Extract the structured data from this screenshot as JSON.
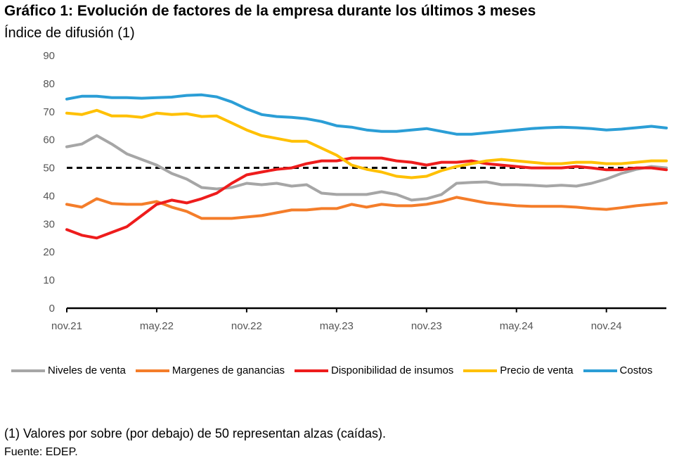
{
  "header": {
    "title": "Gráfico 1: Evolución de factores de la empresa durante los últimos 3 meses",
    "subtitle": "Índice de difusión (1)"
  },
  "footer": {
    "note": "(1) Valores por sobre (por debajo) de 50 representan alzas (caídas).",
    "source": "Fuente: EDEP."
  },
  "chart_data": {
    "type": "line",
    "title": "",
    "xlabel": "",
    "ylabel": "",
    "ylim": [
      0,
      90
    ],
    "yticks": [
      0,
      10,
      20,
      30,
      40,
      50,
      60,
      70,
      80,
      90
    ],
    "x_tick_labels": [
      "nov.21",
      "may.22",
      "nov.22",
      "may.23",
      "nov.23",
      "may.24",
      "nov.24"
    ],
    "x_tick_index": [
      0,
      6,
      12,
      18,
      24,
      30,
      36
    ],
    "grid": false,
    "legend_position": "bottom",
    "reference_line": {
      "value": 50,
      "style": "dashed",
      "color": "#000000"
    },
    "x": [
      "nov.21",
      "dic.21",
      "ene.22",
      "feb.22",
      "mar.22",
      "abr.22",
      "may.22",
      "jun.22",
      "jul.22",
      "ago.22",
      "sep.22",
      "oct.22",
      "nov.22",
      "dic.22",
      "ene.23",
      "feb.23",
      "mar.23",
      "abr.23",
      "may.23",
      "jun.23",
      "jul.23",
      "ago.23",
      "sep.23",
      "oct.23",
      "nov.23",
      "dic.23",
      "ene.24",
      "feb.24",
      "mar.24",
      "abr.24",
      "may.24",
      "jun.24",
      "jul.24",
      "ago.24",
      "sep.24",
      "oct.24",
      "nov.24",
      "dic.24",
      "ene.25",
      "feb.25",
      "mar.25"
    ],
    "series": [
      {
        "name": "Niveles de venta",
        "color": "#A6A6A6",
        "values": [
          57.5,
          58.5,
          61.5,
          58.5,
          55,
          53,
          51,
          48,
          46,
          43,
          42.5,
          43,
          44.5,
          44,
          44.5,
          43.5,
          44,
          41,
          40.5,
          40.5,
          40.5,
          41.5,
          40.5,
          38.5,
          39,
          40.5,
          44.5,
          44.8,
          45,
          44,
          44,
          43.8,
          43.5,
          43.8,
          43.5,
          44.5,
          46,
          48,
          49.5,
          50.5,
          50
        ]
      },
      {
        "name": "Margenes de ganancias",
        "color": "#F47D2A",
        "values": [
          37,
          36,
          39,
          37.3,
          37,
          37,
          38,
          36,
          34.5,
          32,
          32,
          32,
          32.5,
          33,
          34,
          35,
          35,
          35.5,
          35.5,
          37,
          36,
          37,
          36.5,
          36.5,
          37,
          38,
          39.5,
          38.5,
          37.5,
          37,
          36.5,
          36.3,
          36.3,
          36.3,
          36,
          35.5,
          35.2,
          35.8,
          36.5,
          37,
          37.5
        ]
      },
      {
        "name": "Disponibilidad de insumos",
        "color": "#EE1C1C",
        "values": [
          28,
          26,
          25,
          27,
          29,
          33,
          37,
          38.5,
          37.5,
          39,
          41,
          44.5,
          47.5,
          48.5,
          49.5,
          50,
          51.5,
          52.5,
          52.5,
          53.5,
          53.5,
          53.5,
          52.5,
          52,
          51,
          52,
          52,
          52.5,
          51.5,
          51,
          50.5,
          50,
          50,
          50,
          50.5,
          50,
          49.3,
          49.3,
          50,
          50,
          49.3
        ]
      },
      {
        "name": "Precio de venta",
        "color": "#FFC000",
        "values": [
          69.5,
          69,
          70.5,
          68.5,
          68.5,
          68,
          69.5,
          69,
          69.3,
          68.3,
          68.5,
          66,
          63.5,
          61.5,
          60.5,
          59.5,
          59.5,
          57,
          54.5,
          51,
          49.5,
          48.5,
          47,
          46.5,
          47,
          49,
          50.5,
          51.5,
          52.5,
          53,
          52.5,
          52,
          51.5,
          51.5,
          52,
          52,
          51.5,
          51.5,
          52,
          52.5,
          52.5
        ]
      },
      {
        "name": "Costos",
        "color": "#2B9ED6",
        "values": [
          74.5,
          75.5,
          75.5,
          75,
          75,
          74.8,
          75,
          75.2,
          75.8,
          76,
          75.3,
          73.5,
          71,
          69,
          68.3,
          68,
          67.5,
          66.5,
          65,
          64.5,
          63.5,
          63,
          63,
          63.5,
          64,
          63,
          62,
          62,
          62.5,
          63,
          63.5,
          64,
          64.3,
          64.5,
          64.3,
          64,
          63.5,
          63.8,
          64.3,
          64.8,
          64.2
        ]
      }
    ]
  }
}
